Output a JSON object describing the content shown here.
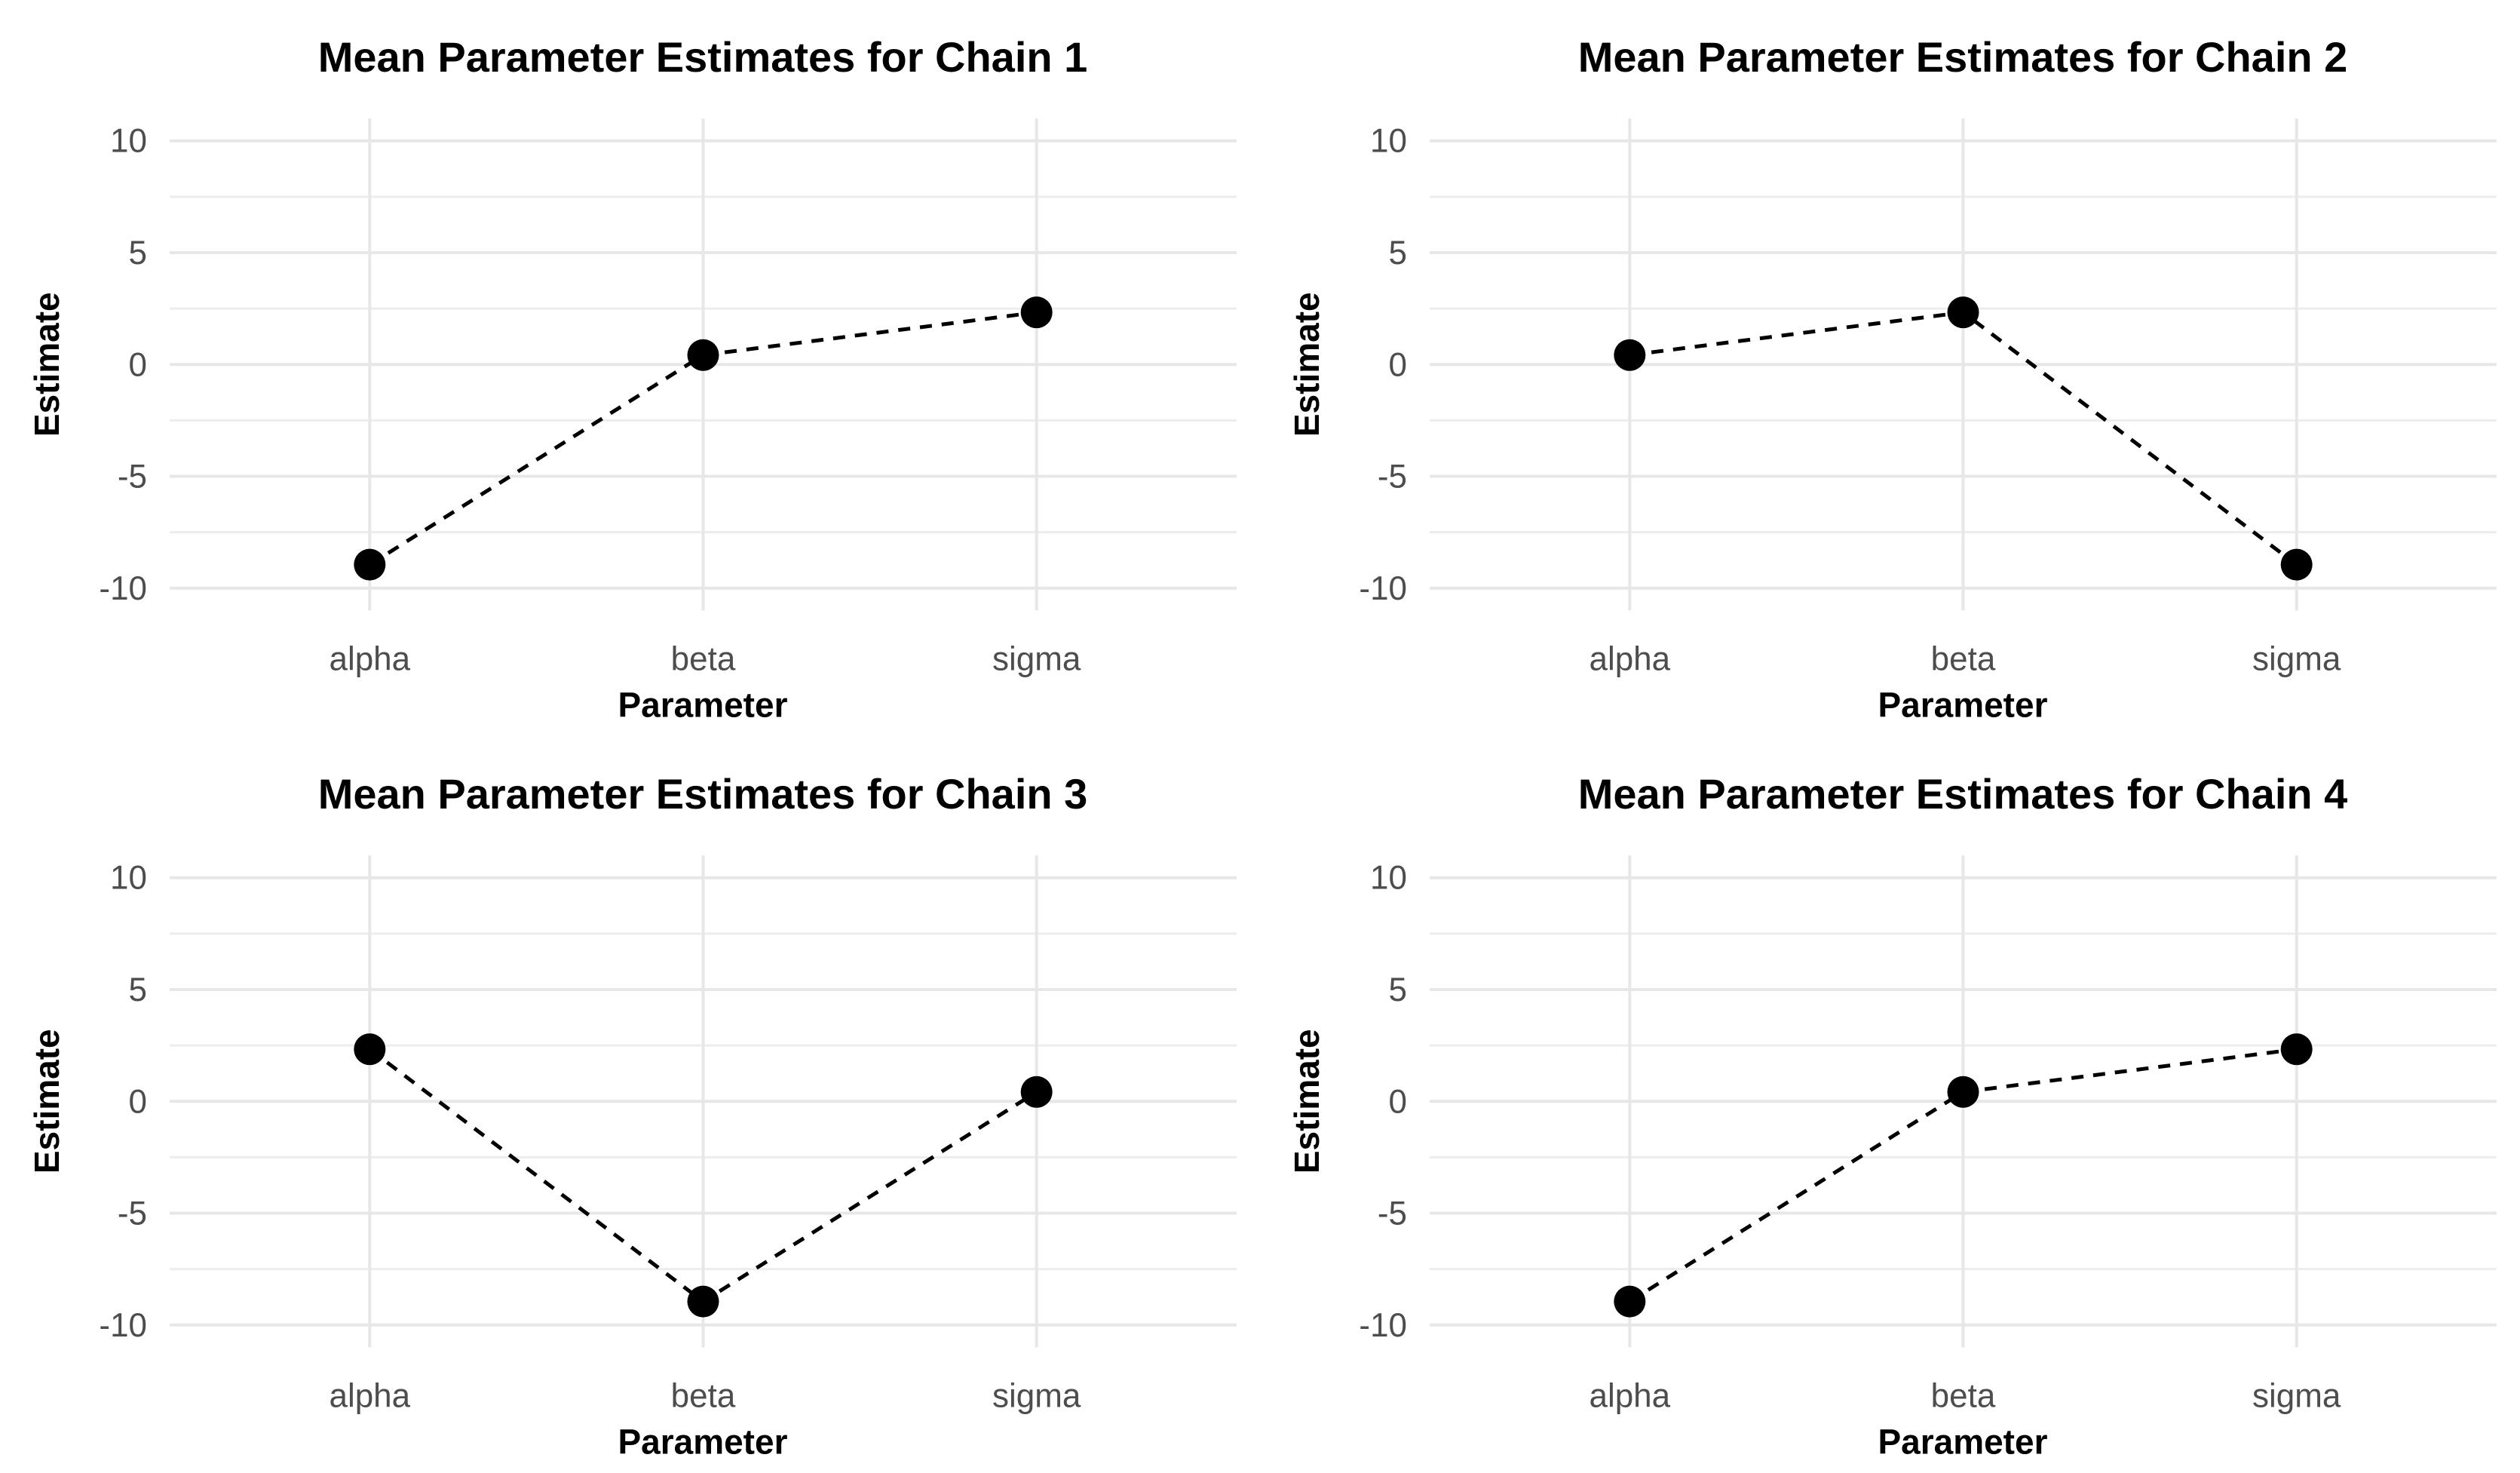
{
  "style": {
    "background": "#FFFFFF",
    "grid_major_color": "#E7E7E7",
    "grid_minor_color": "#EDEDED",
    "axis_text_color": "#4D4D4D",
    "title_color": "#000000",
    "series_color": "#000000"
  },
  "chart_data": [
    {
      "type": "line",
      "title": "Mean Parameter Estimates for Chain 1",
      "xlabel": "Parameter",
      "ylabel": "Estimate",
      "categories": [
        "alpha",
        "beta",
        "sigma"
      ],
      "values": [
        -8.95,
        0.42,
        2.33
      ],
      "yticks": [
        10,
        5,
        0,
        -5,
        -10
      ],
      "yticks_minor": [
        7.5,
        2.5,
        -2.5,
        -7.5
      ],
      "ylim": [
        -11,
        11
      ],
      "line_style": "dashed",
      "marker": "filled-circle",
      "grid": true,
      "legend": false
    },
    {
      "type": "line",
      "title": "Mean Parameter Estimates for Chain 2",
      "xlabel": "Parameter",
      "ylabel": "Estimate",
      "categories": [
        "alpha",
        "beta",
        "sigma"
      ],
      "values": [
        0.42,
        2.33,
        -8.95
      ],
      "yticks": [
        10,
        5,
        0,
        -5,
        -10
      ],
      "yticks_minor": [
        7.5,
        2.5,
        -2.5,
        -7.5
      ],
      "ylim": [
        -11,
        11
      ],
      "line_style": "dashed",
      "marker": "filled-circle",
      "grid": true,
      "legend": false
    },
    {
      "type": "line",
      "title": "Mean Parameter Estimates for Chain 3",
      "xlabel": "Parameter",
      "ylabel": "Estimate",
      "categories": [
        "alpha",
        "beta",
        "sigma"
      ],
      "values": [
        2.33,
        -8.95,
        0.42
      ],
      "yticks": [
        10,
        5,
        0,
        -5,
        -10
      ],
      "yticks_minor": [
        7.5,
        2.5,
        -2.5,
        -7.5
      ],
      "ylim": [
        -11,
        11
      ],
      "line_style": "dashed",
      "marker": "filled-circle",
      "grid": true,
      "legend": false
    },
    {
      "type": "line",
      "title": "Mean Parameter Estimates for Chain 4",
      "xlabel": "Parameter",
      "ylabel": "Estimate",
      "categories": [
        "alpha",
        "beta",
        "sigma"
      ],
      "values": [
        -8.95,
        0.42,
        2.33
      ],
      "yticks": [
        10,
        5,
        0,
        -5,
        -10
      ],
      "yticks_minor": [
        7.5,
        2.5,
        -2.5,
        -7.5
      ],
      "ylim": [
        -11,
        11
      ],
      "line_style": "dashed",
      "marker": "filled-circle",
      "grid": true,
      "legend": false
    }
  ]
}
